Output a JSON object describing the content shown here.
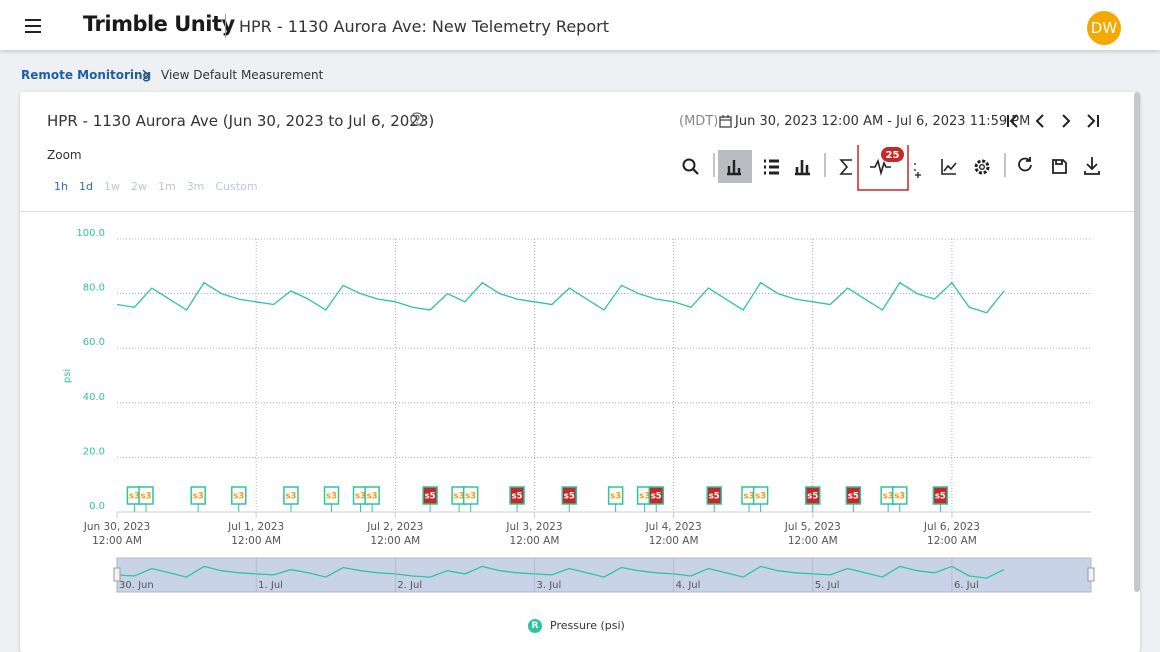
{
  "header": {
    "app_name": "Trimble Unity",
    "title": "HPR - 1130 Aurora Ave: New Telemetry Report",
    "avatar": "DW"
  },
  "breadcrumb": [
    "Remote Monitoring",
    "View Default Measurement"
  ],
  "panel": {
    "title": "HPR - 1130 Aurora Ave (Jun 30, 2023 to Jul 6, 2023)",
    "timezone": "(MDT)",
    "date_range": "Jun 30, 2023 12:00 AM - Jul 6, 2023 11:59 PM",
    "zoom_label": "Zoom",
    "zoom_options": [
      "1h",
      "1d",
      "1w",
      "2w",
      "1m",
      "3m",
      "Custom"
    ],
    "events_badge": 25
  },
  "chart_data": {
    "type": "line",
    "y_label": "psi",
    "xlim": [
      "2023-06-30T00:00",
      "2023-07-06T23:59"
    ],
    "ylim": [
      0,
      100
    ],
    "yticks": [
      {
        "value": 0,
        "label": "0.0"
      },
      {
        "value": 20,
        "label": "20.0"
      },
      {
        "value": 40,
        "label": "40.0"
      },
      {
        "value": 60,
        "label": "60.0"
      },
      {
        "value": 80,
        "label": "80.0"
      },
      {
        "value": 100,
        "label": "100.0"
      }
    ],
    "xticks": [
      {
        "value": "2023-06-30T00:00",
        "label": "Jun 30, 2023",
        "time": "12:00 AM"
      },
      {
        "value": "2023-07-01T00:00",
        "label": "Jul 1, 2023",
        "time": "12:00 AM"
      },
      {
        "value": "2023-07-02T00:00",
        "label": "Jul 2, 2023",
        "time": "12:00 AM"
      },
      {
        "value": "2023-07-03T00:00",
        "label": "Jul 3, 2023",
        "time": "12:00 AM"
      },
      {
        "value": "2023-07-04T00:00",
        "label": "Jul 4, 2023",
        "time": "12:00 AM"
      },
      {
        "value": "2023-07-05T00:00",
        "label": "Jul 5, 2023",
        "time": "12:00 AM"
      },
      {
        "value": "2023-07-06T00:00",
        "label": "Jul 6, 2023",
        "time": "12:00 AM"
      }
    ],
    "grid": true,
    "x": [
      "2023-06-30T00:00",
      "2023-06-30T03:00",
      "2023-06-30T06:00",
      "2023-06-30T09:00",
      "2023-06-30T12:00",
      "2023-06-30T15:00",
      "2023-06-30T18:00",
      "2023-06-30T21:00",
      "2023-07-01T00:00",
      "2023-07-01T03:00",
      "2023-07-01T06:00",
      "2023-07-01T09:00",
      "2023-07-01T12:00",
      "2023-07-01T15:00",
      "2023-07-01T18:00",
      "2023-07-01T21:00",
      "2023-07-02T00:00",
      "2023-07-02T03:00",
      "2023-07-02T06:00",
      "2023-07-02T09:00",
      "2023-07-02T12:00",
      "2023-07-02T15:00",
      "2023-07-02T18:00",
      "2023-07-02T21:00",
      "2023-07-03T00:00",
      "2023-07-03T03:00",
      "2023-07-03T06:00",
      "2023-07-03T09:00",
      "2023-07-03T12:00",
      "2023-07-03T15:00",
      "2023-07-03T18:00",
      "2023-07-03T21:00",
      "2023-07-04T00:00",
      "2023-07-04T03:00",
      "2023-07-04T06:00",
      "2023-07-04T09:00",
      "2023-07-04T12:00",
      "2023-07-04T15:00",
      "2023-07-04T18:00",
      "2023-07-04T21:00",
      "2023-07-05T00:00",
      "2023-07-05T03:00",
      "2023-07-05T06:00",
      "2023-07-05T09:00",
      "2023-07-05T12:00",
      "2023-07-05T15:00",
      "2023-07-05T18:00",
      "2023-07-05T21:00",
      "2023-07-06T00:00",
      "2023-07-06T03:00",
      "2023-07-06T06:00",
      "2023-07-06T09:00"
    ],
    "series": [
      {
        "name": "Pressure (psi)",
        "legend_icon": "R",
        "color": "#2ec4a0",
        "values": [
          76,
          75,
          82,
          78,
          74,
          84,
          80,
          78,
          77,
          76,
          81,
          78,
          74,
          83,
          80,
          78,
          77,
          75,
          74,
          80,
          77,
          84,
          80,
          78,
          77,
          76,
          82,
          78,
          74,
          83,
          80,
          78,
          77,
          75,
          82,
          78,
          74,
          84,
          80,
          78,
          77,
          76,
          82,
          78,
          74,
          84,
          80,
          78,
          84,
          75,
          73,
          81
        ]
      }
    ],
    "flags": [
      {
        "x": "2023-06-30T03:00",
        "label": "s3",
        "fill": "#ffffff",
        "ink": "#f39c12"
      },
      {
        "x": "2023-06-30T05:00",
        "label": "s3",
        "fill": "#ffffff",
        "ink": "#f39c12"
      },
      {
        "x": "2023-06-30T14:00",
        "label": "s3",
        "fill": "#ffffff",
        "ink": "#f39c12"
      },
      {
        "x": "2023-06-30T21:00",
        "label": "s3",
        "fill": "#ffffff",
        "ink": "#f39c12"
      },
      {
        "x": "2023-07-01T06:00",
        "label": "s3",
        "fill": "#ffffff",
        "ink": "#f39c12"
      },
      {
        "x": "2023-07-01T13:00",
        "label": "s3",
        "fill": "#ffffff",
        "ink": "#f39c12"
      },
      {
        "x": "2023-07-01T18:00",
        "label": "s3",
        "fill": "#ffffff",
        "ink": "#f39c12"
      },
      {
        "x": "2023-07-01T20:00",
        "label": "s3",
        "fill": "#ffffff",
        "ink": "#f39c12"
      },
      {
        "x": "2023-07-02T06:00",
        "label": "s5",
        "fill": "#c62828",
        "ink": "#ffffff"
      },
      {
        "x": "2023-07-02T11:00",
        "label": "s3",
        "fill": "#ffffff",
        "ink": "#f39c12"
      },
      {
        "x": "2023-07-02T13:00",
        "label": "s3",
        "fill": "#ffffff",
        "ink": "#f39c12"
      },
      {
        "x": "2023-07-02T21:00",
        "label": "s5",
        "fill": "#c62828",
        "ink": "#ffffff"
      },
      {
        "x": "2023-07-03T06:00",
        "label": "s5",
        "fill": "#c62828",
        "ink": "#ffffff"
      },
      {
        "x": "2023-07-03T14:00",
        "label": "s3",
        "fill": "#ffffff",
        "ink": "#f39c12"
      },
      {
        "x": "2023-07-03T19:00",
        "label": "s3",
        "fill": "#ffffff",
        "ink": "#f39c12"
      },
      {
        "x": "2023-07-03T21:00",
        "label": "s5",
        "fill": "#c62828",
        "ink": "#ffffff"
      },
      {
        "x": "2023-07-04T07:00",
        "label": "s5",
        "fill": "#c62828",
        "ink": "#ffffff"
      },
      {
        "x": "2023-07-04T13:00",
        "label": "s3",
        "fill": "#ffffff",
        "ink": "#f39c12"
      },
      {
        "x": "2023-07-04T15:00",
        "label": "s3",
        "fill": "#ffffff",
        "ink": "#f39c12"
      },
      {
        "x": "2023-07-05T00:00",
        "label": "s5",
        "fill": "#c62828",
        "ink": "#ffffff"
      },
      {
        "x": "2023-07-05T07:00",
        "label": "s5",
        "fill": "#c62828",
        "ink": "#ffffff"
      },
      {
        "x": "2023-07-05T13:00",
        "label": "s3",
        "fill": "#ffffff",
        "ink": "#f39c12"
      },
      {
        "x": "2023-07-05T15:00",
        "label": "s3",
        "fill": "#ffffff",
        "ink": "#f39c12"
      },
      {
        "x": "2023-07-05T22:00",
        "label": "s5",
        "fill": "#c62828",
        "ink": "#ffffff"
      }
    ],
    "navigator_labels": [
      {
        "value": "2023-06-30T00:00",
        "label": "30. Jun"
      },
      {
        "value": "2023-07-01T00:00",
        "label": "1. Jul"
      },
      {
        "value": "2023-07-02T00:00",
        "label": "2. Jul"
      },
      {
        "value": "2023-07-03T00:00",
        "label": "3. Jul"
      },
      {
        "value": "2023-07-04T00:00",
        "label": "4. Jul"
      },
      {
        "value": "2023-07-05T00:00",
        "label": "5. Jul"
      },
      {
        "value": "2023-07-06T00:00",
        "label": "6. Jul"
      }
    ]
  }
}
